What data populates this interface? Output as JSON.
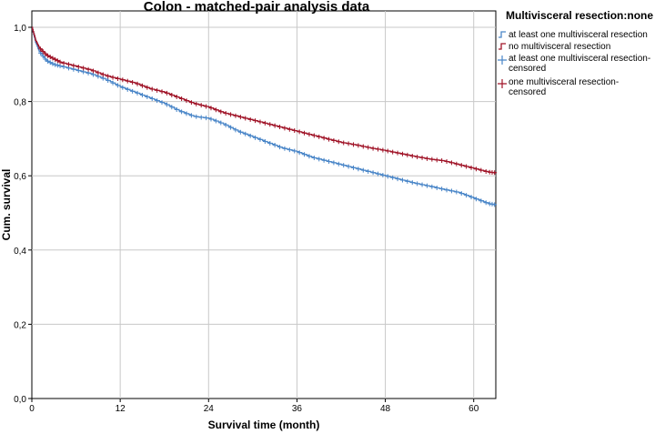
{
  "chart_data": {
    "type": "line",
    "title": "Colon - matched-pair analysis data",
    "xlabel": "Survival time (month)",
    "ylabel": "Cum. survival",
    "xlim": [
      0,
      63
    ],
    "ylim": [
      0,
      1.0
    ],
    "x_ticks": [
      "0",
      "12",
      "24",
      "36",
      "48",
      "60"
    ],
    "x_tick_values": [
      0,
      12,
      24,
      36,
      48,
      60
    ],
    "y_ticks": [
      "0,0",
      "0,2",
      "0,4",
      "0,6",
      "0,8",
      "1,0"
    ],
    "y_tick_values": [
      0,
      0.2,
      0.4,
      0.6,
      0.8,
      1.0
    ],
    "grid": true,
    "legend": {
      "title": "Multivisceral resection:none",
      "placement": "right-top",
      "entries": [
        {
          "label": "at least one multivisceral resection",
          "kind": "step",
          "color": "#4a86c8"
        },
        {
          "label": "no multivisceral resection",
          "kind": "step",
          "color": "#a01428"
        },
        {
          "label": "at least one multivisceral resection-",
          "label2": "censored",
          "kind": "censor",
          "color": "#4a86c8"
        },
        {
          "label": "one multivisceral resection-",
          "label2": "censored",
          "kind": "censor",
          "color": "#a01428"
        }
      ]
    },
    "series": [
      {
        "color": "#4a86c8",
        "x": [
          0,
          0.5,
          1,
          2,
          3,
          4,
          6,
          8,
          10,
          12,
          14,
          16,
          18,
          20,
          22,
          24,
          26,
          28,
          30,
          32,
          34,
          36,
          38,
          40,
          42,
          44,
          46,
          48,
          50,
          52,
          54,
          56,
          58,
          60,
          62,
          63
        ],
        "y": [
          1.0,
          0.96,
          0.935,
          0.91,
          0.9,
          0.895,
          0.885,
          0.875,
          0.86,
          0.84,
          0.825,
          0.81,
          0.795,
          0.775,
          0.76,
          0.755,
          0.74,
          0.72,
          0.705,
          0.69,
          0.675,
          0.665,
          0.65,
          0.64,
          0.63,
          0.62,
          0.61,
          0.6,
          0.59,
          0.58,
          0.572,
          0.563,
          0.555,
          0.54,
          0.525,
          0.522
        ]
      },
      {
        "color": "#a01428",
        "x": [
          0,
          0.5,
          1,
          2,
          3,
          4,
          6,
          8,
          10,
          12,
          14,
          16,
          18,
          20,
          22,
          24,
          26,
          28,
          30,
          32,
          34,
          36,
          38,
          40,
          42,
          44,
          46,
          48,
          50,
          52,
          54,
          56,
          58,
          60,
          62,
          63
        ],
        "y": [
          1.0,
          0.965,
          0.945,
          0.925,
          0.915,
          0.905,
          0.895,
          0.885,
          0.87,
          0.86,
          0.85,
          0.835,
          0.825,
          0.81,
          0.795,
          0.785,
          0.77,
          0.76,
          0.75,
          0.74,
          0.73,
          0.72,
          0.71,
          0.7,
          0.69,
          0.683,
          0.675,
          0.668,
          0.66,
          0.652,
          0.645,
          0.64,
          0.63,
          0.62,
          0.61,
          0.608
        ]
      }
    ]
  }
}
